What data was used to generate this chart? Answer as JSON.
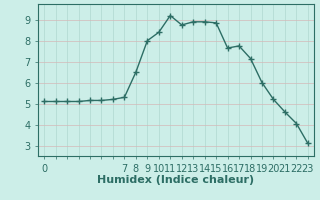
{
  "x": [
    0,
    1,
    2,
    3,
    4,
    5,
    6,
    7,
    8,
    9,
    10,
    11,
    12,
    13,
    14,
    15,
    16,
    17,
    18,
    19,
    20,
    21,
    22,
    23
  ],
  "y": [
    5.1,
    5.1,
    5.1,
    5.1,
    5.15,
    5.15,
    5.2,
    5.3,
    6.5,
    8.0,
    8.4,
    9.2,
    8.75,
    8.9,
    8.9,
    8.85,
    7.65,
    7.75,
    7.15,
    6.0,
    5.2,
    4.6,
    4.05,
    3.1
  ],
  "line_color": "#2d6e65",
  "marker": "+",
  "marker_color": "#2d6e65",
  "bg_color": "#cceee8",
  "grid_color_v": "#b0d8d0",
  "grid_color_h": "#d4b8b8",
  "xlabel": "Humidex (Indice chaleur)",
  "xlabel_fontsize": 8,
  "ytick_positions": [
    3,
    4,
    5,
    6,
    7,
    8,
    9
  ],
  "ytick_labels": [
    "3",
    "4",
    "5",
    "6",
    "7",
    "8",
    "9"
  ],
  "xtick_show": [
    0,
    7,
    8,
    9,
    10,
    11,
    12,
    13,
    14,
    15,
    16,
    17,
    18,
    19,
    20,
    21,
    22,
    23
  ],
  "ylim": [
    2.5,
    9.75
  ],
  "xlim": [
    -0.5,
    23.5
  ],
  "axis_color": "#2d6e65",
  "tick_fontsize": 7,
  "linewidth": 1.0,
  "markersize": 4
}
